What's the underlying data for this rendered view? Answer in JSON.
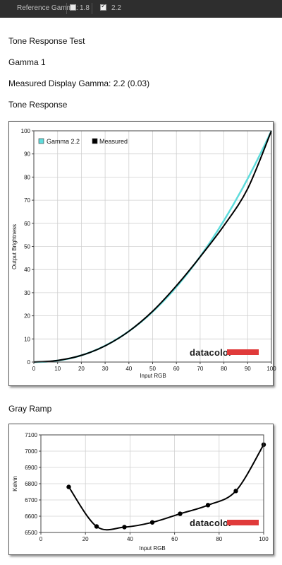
{
  "toolbar": {
    "reference_label": "Reference Gamma:",
    "options": [
      {
        "label": "1.8",
        "checked": false
      },
      {
        "label": "2.2",
        "checked": true
      }
    ]
  },
  "page": {
    "title": "Tone Response Test",
    "subtitle": "Gamma 1",
    "measured_label": "Measured Display Gamma: 2.2 (0.03)",
    "tone_heading": "Tone Response",
    "gray_heading": "Gray Ramp"
  },
  "logo_text": "datacolor",
  "colors": {
    "reference": "#5fdcdc",
    "measured": "#000000",
    "logo_bar": "#e03a3a",
    "grid": "#d0d0d0"
  },
  "chart_data": [
    {
      "type": "line",
      "xlabel": "Input RGB",
      "ylabel": "Output Brightness",
      "xlim": [
        0,
        100
      ],
      "ylim": [
        0,
        100
      ],
      "xticks": [
        0,
        10,
        20,
        30,
        40,
        50,
        60,
        70,
        80,
        90,
        100
      ],
      "yticks": [
        0,
        10,
        20,
        30,
        40,
        50,
        60,
        70,
        80,
        90,
        100
      ],
      "grid": true,
      "legend": "top-left",
      "series": [
        {
          "name": "Gamma 2.2",
          "gamma": 2.2,
          "color": "#5fdcdc"
        },
        {
          "name": "Measured",
          "color": "#000000",
          "x": [
            0,
            10,
            20,
            30,
            40,
            50,
            60,
            70,
            80,
            90,
            100
          ],
          "y": [
            0,
            0.7,
            2.9,
            7.0,
            13.3,
            22.0,
            33.0,
            45.5,
            59.0,
            75.0,
            100
          ]
        }
      ]
    },
    {
      "type": "line",
      "xlabel": "Input RGB",
      "ylabel": "Kelvin",
      "xlim": [
        0,
        100
      ],
      "ylim": [
        6500,
        7100
      ],
      "xticks": [
        0,
        20,
        40,
        60,
        80,
        100
      ],
      "yticks": [
        6500,
        6600,
        6700,
        6800,
        6900,
        7000,
        7100
      ],
      "grid": true,
      "series": [
        {
          "x": [
            12.5,
            25,
            37.5,
            50,
            62.5,
            75,
            87.5,
            100
          ],
          "y": [
            6780,
            6537,
            6533,
            6562,
            6615,
            6668,
            6755,
            7040
          ]
        }
      ]
    }
  ]
}
